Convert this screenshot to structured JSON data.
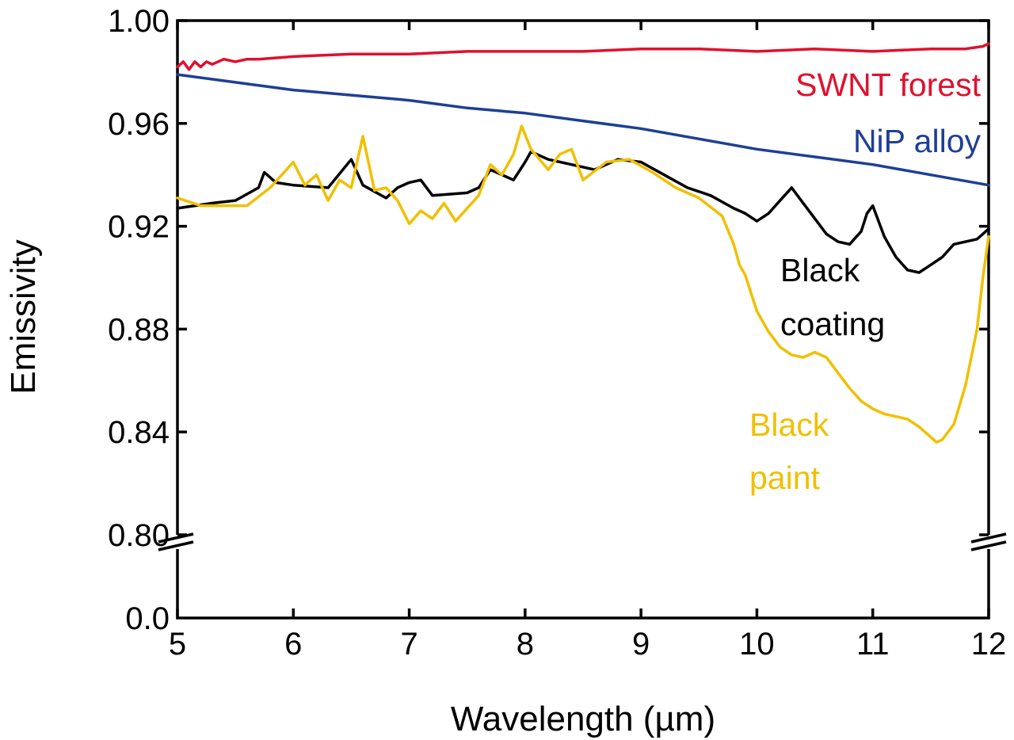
{
  "chart_data": {
    "type": "line",
    "title": "",
    "xlabel": "Wavelength (µm)",
    "ylabel": "Emissivity",
    "xlim": [
      5,
      12
    ],
    "ylim_upper": [
      0.8,
      1.0
    ],
    "ylim_lower": [
      0.0,
      0.0
    ],
    "broken_y_axis": true,
    "x_ticks": [
      "5",
      "6",
      "7",
      "8",
      "9",
      "10",
      "11",
      "12"
    ],
    "y_ticks_upper": [
      "1.00",
      "0.96",
      "0.92",
      "0.88",
      "0.84",
      "0.80"
    ],
    "y_ticks_lower": [
      "0.0"
    ],
    "grid": false,
    "series": [
      {
        "name": "SWNT forest",
        "label_lines": [
          "SWNT forest"
        ],
        "color": "#e0102f",
        "x": [
          5.0,
          5.05,
          5.1,
          5.15,
          5.2,
          5.25,
          5.3,
          5.4,
          5.5,
          5.6,
          5.7,
          6.0,
          6.5,
          7.0,
          7.5,
          8.0,
          8.5,
          9.0,
          9.5,
          10.0,
          10.5,
          11.0,
          11.5,
          11.8,
          11.95,
          12.0
        ],
        "y": [
          0.982,
          0.984,
          0.981,
          0.984,
          0.982,
          0.984,
          0.983,
          0.985,
          0.984,
          0.985,
          0.985,
          0.986,
          0.987,
          0.987,
          0.988,
          0.988,
          0.988,
          0.989,
          0.989,
          0.988,
          0.989,
          0.988,
          0.989,
          0.989,
          0.99,
          0.991
        ]
      },
      {
        "name": "NiP alloy",
        "label_lines": [
          "NiP alloy"
        ],
        "color": "#1e3f94",
        "x": [
          5.0,
          5.5,
          6.0,
          6.5,
          7.0,
          7.5,
          8.0,
          8.5,
          9.0,
          9.5,
          10.0,
          10.5,
          11.0,
          11.5,
          12.0
        ],
        "y": [
          0.979,
          0.976,
          0.973,
          0.971,
          0.969,
          0.966,
          0.964,
          0.961,
          0.958,
          0.954,
          0.95,
          0.947,
          0.944,
          0.94,
          0.936
        ]
      },
      {
        "name": "Black coating",
        "label_lines": [
          "Black",
          "coating"
        ],
        "color": "#000000",
        "x": [
          5.0,
          5.3,
          5.5,
          5.7,
          5.75,
          5.85,
          6.0,
          6.3,
          6.5,
          6.6,
          6.8,
          6.9,
          7.0,
          7.1,
          7.2,
          7.5,
          7.6,
          7.7,
          7.9,
          8.0,
          8.05,
          8.2,
          8.4,
          8.6,
          8.8,
          9.0,
          9.2,
          9.4,
          9.6,
          9.8,
          9.9,
          10.0,
          10.1,
          10.2,
          10.3,
          10.4,
          10.5,
          10.6,
          10.7,
          10.8,
          10.9,
          10.95,
          11.0,
          11.1,
          11.2,
          11.3,
          11.4,
          11.5,
          11.6,
          11.7,
          11.8,
          11.9,
          12.0
        ],
        "y": [
          0.927,
          0.929,
          0.93,
          0.935,
          0.941,
          0.937,
          0.936,
          0.935,
          0.946,
          0.936,
          0.931,
          0.935,
          0.937,
          0.938,
          0.932,
          0.933,
          0.935,
          0.942,
          0.938,
          0.945,
          0.949,
          0.946,
          0.944,
          0.942,
          0.946,
          0.945,
          0.94,
          0.935,
          0.932,
          0.927,
          0.925,
          0.922,
          0.925,
          0.93,
          0.935,
          0.929,
          0.923,
          0.917,
          0.914,
          0.913,
          0.918,
          0.925,
          0.928,
          0.916,
          0.908,
          0.903,
          0.902,
          0.905,
          0.908,
          0.913,
          0.914,
          0.915,
          0.919
        ]
      },
      {
        "name": "Black paint",
        "label_lines": [
          "Black",
          "paint"
        ],
        "color": "#f0c000",
        "x": [
          5.0,
          5.2,
          5.4,
          5.6,
          5.8,
          6.0,
          6.1,
          6.2,
          6.3,
          6.4,
          6.5,
          6.6,
          6.7,
          6.8,
          6.9,
          7.0,
          7.1,
          7.2,
          7.3,
          7.4,
          7.6,
          7.7,
          7.8,
          7.9,
          7.97,
          8.05,
          8.2,
          8.3,
          8.4,
          8.5,
          8.7,
          8.9,
          9.1,
          9.3,
          9.5,
          9.7,
          9.8,
          9.85,
          9.9,
          10.0,
          10.1,
          10.2,
          10.3,
          10.4,
          10.5,
          10.6,
          10.7,
          10.8,
          10.9,
          11.0,
          11.1,
          11.2,
          11.3,
          11.4,
          11.5,
          11.55,
          11.6,
          11.7,
          11.8,
          11.9,
          11.95,
          12.0
        ],
        "y": [
          0.931,
          0.928,
          0.928,
          0.928,
          0.935,
          0.945,
          0.936,
          0.94,
          0.93,
          0.938,
          0.935,
          0.955,
          0.934,
          0.935,
          0.93,
          0.921,
          0.926,
          0.923,
          0.929,
          0.922,
          0.932,
          0.944,
          0.94,
          0.948,
          0.959,
          0.95,
          0.942,
          0.948,
          0.95,
          0.938,
          0.945,
          0.946,
          0.941,
          0.935,
          0.931,
          0.924,
          0.913,
          0.905,
          0.901,
          0.887,
          0.879,
          0.873,
          0.87,
          0.869,
          0.871,
          0.869,
          0.863,
          0.857,
          0.852,
          0.849,
          0.847,
          0.846,
          0.845,
          0.842,
          0.838,
          0.836,
          0.837,
          0.843,
          0.858,
          0.88,
          0.9,
          0.916
        ]
      }
    ]
  }
}
